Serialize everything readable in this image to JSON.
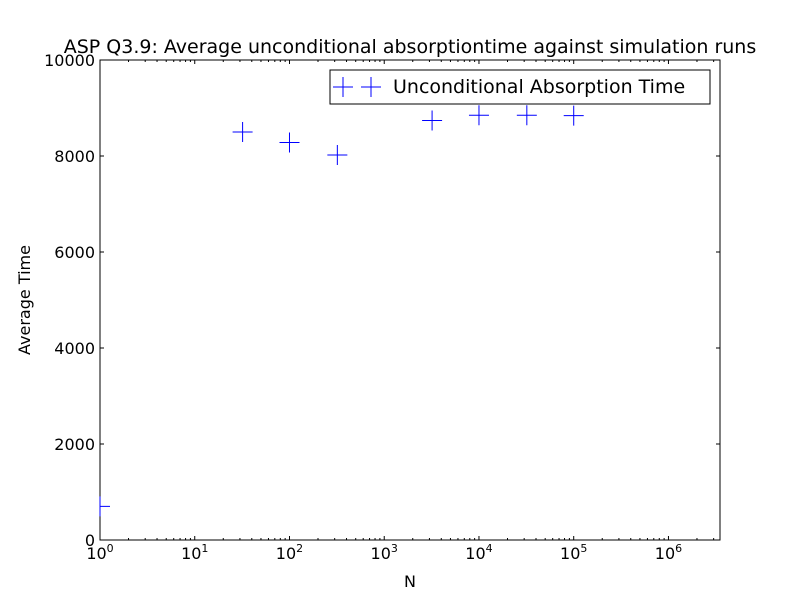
{
  "chart_data": {
    "type": "scatter",
    "title": "ASP Q3.9: Average unconditional absorptiontime against simulation runs",
    "xlabel": "N",
    "ylabel": "Average Time",
    "x_scale": "log",
    "xlim": [
      1,
      3500000
    ],
    "ylim": [
      0,
      10000
    ],
    "x_ticks": [
      {
        "value": 1,
        "base": "10",
        "exp": "0"
      },
      {
        "value": 10,
        "base": "10",
        "exp": "1"
      },
      {
        "value": 100,
        "base": "10",
        "exp": "2"
      },
      {
        "value": 1000,
        "base": "10",
        "exp": "3"
      },
      {
        "value": 10000,
        "base": "10",
        "exp": "4"
      },
      {
        "value": 100000,
        "base": "10",
        "exp": "5"
      },
      {
        "value": 1000000,
        "base": "10",
        "exp": "6"
      }
    ],
    "y_ticks": [
      {
        "value": 0,
        "label": "0"
      },
      {
        "value": 2000,
        "label": "2000"
      },
      {
        "value": 4000,
        "label": "4000"
      },
      {
        "value": 6000,
        "label": "6000"
      },
      {
        "value": 8000,
        "label": "8000"
      },
      {
        "value": 10000,
        "label": "10000"
      }
    ],
    "grid": false,
    "legend_position": "top-right",
    "series": [
      {
        "name": "Unconditional Absorption Time",
        "color": "#0000ff",
        "marker": "plus",
        "points": [
          {
            "x": 1,
            "y": 700
          },
          {
            "x": 32,
            "y": 8500
          },
          {
            "x": 100,
            "y": 8280
          },
          {
            "x": 320,
            "y": 8020
          },
          {
            "x": 3200,
            "y": 8740
          },
          {
            "x": 10000,
            "y": 8850
          },
          {
            "x": 32000,
            "y": 8850
          },
          {
            "x": 100000,
            "y": 8840
          }
        ]
      }
    ]
  }
}
